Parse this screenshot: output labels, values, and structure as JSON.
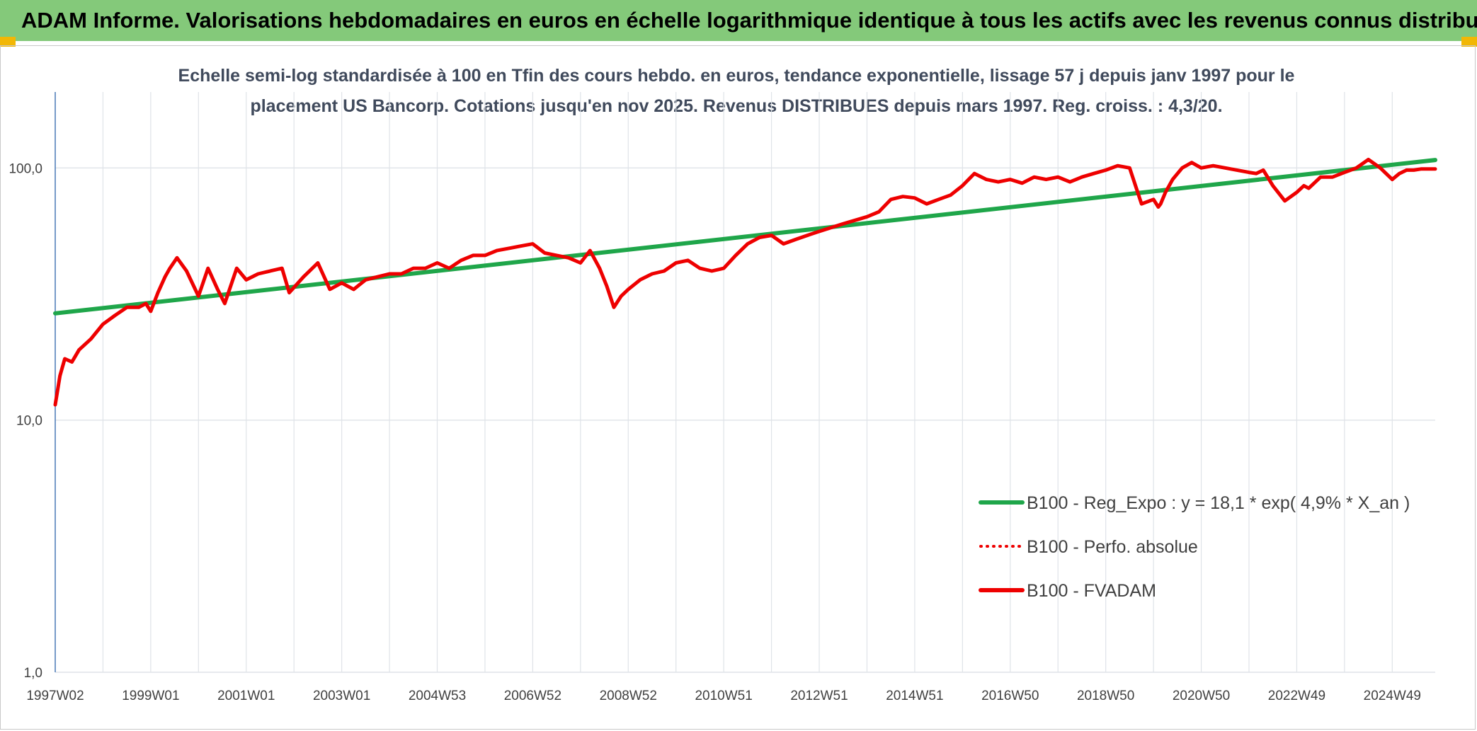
{
  "header": {
    "title": "ADAM Informe. Valorisations hebdomadaires en euros en échelle logarithmique identique à tous les actifs avec les revenus connus distribués"
  },
  "colors": {
    "header_bg": "#84c97a",
    "trend": "#1fa64a",
    "fvadam": "#ee0000",
    "perf": "#ee0000",
    "grid": "#dfe3e8",
    "axis": "#4a7ab8"
  },
  "chart_data": {
    "type": "line",
    "title": "Echelle semi-log standardisée à 100 en Tfin des cours hebdo. en euros, tendance exponentielle, lissage 57 j depuis janv 1997 pour le placement US Bancorp. Cotations jusqu'en nov 2025. Revenus DISTRIBUES depuis mars 1997. Reg. croiss. : 4,3/20.",
    "title_lines": [
      "Echelle semi-log standardisée à 100 en Tfin des cours hebdo. en euros, tendance exponentielle, lissage 57 j depuis janv 1997 pour le",
      "placement US Bancorp. Cotations jusqu'en nov 2025. Revenus DISTRIBUES depuis mars 1997. Reg. croiss. : 4,3/20."
    ],
    "y_scale": "log",
    "ylim": [
      1,
      200
    ],
    "xlim": [
      1997.0,
      2025.9
    ],
    "grid": true,
    "legend_position": "bottom-right",
    "y_ticks": [
      {
        "value": 1,
        "label": "1,0"
      },
      {
        "value": 10,
        "label": "10,0"
      },
      {
        "value": 100,
        "label": "100,0"
      }
    ],
    "x_ticks": [
      {
        "value": 1997.0,
        "label": "1997W02"
      },
      {
        "value": 1999.0,
        "label": "1999W01"
      },
      {
        "value": 2001.0,
        "label": "2001W01"
      },
      {
        "value": 2003.0,
        "label": "2003W01"
      },
      {
        "value": 2005.0,
        "label": "2004W53"
      },
      {
        "value": 2007.0,
        "label": "2006W52"
      },
      {
        "value": 2009.0,
        "label": "2008W52"
      },
      {
        "value": 2011.0,
        "label": "2010W51"
      },
      {
        "value": 2013.0,
        "label": "2012W51"
      },
      {
        "value": 2015.0,
        "label": "2014W51"
      },
      {
        "value": 2017.0,
        "label": "2016W50"
      },
      {
        "value": 2019.0,
        "label": "2018W50"
      },
      {
        "value": 2021.0,
        "label": "2020W50"
      },
      {
        "value": 2023.0,
        "label": "2022W49"
      },
      {
        "value": 2025.0,
        "label": "2024W49"
      }
    ],
    "series": [
      {
        "name": "B100 - Reg_Expo : y = 18,1 * exp( 4,9% *  X_an )",
        "style": "solid",
        "color": "#1fa64a",
        "x": [
          1997.0,
          2025.9
        ],
        "y": [
          26.5,
          107.5
        ]
      },
      {
        "name": "B100 - Perfo. absolue",
        "style": "dotted",
        "color": "#ee0000",
        "x": [],
        "y": []
      },
      {
        "name": "B100 - FVADAM",
        "style": "solid",
        "color": "#ee0000",
        "x": [
          1997.0,
          1997.1,
          1997.2,
          1997.35,
          1997.5,
          1997.75,
          1998.0,
          1998.25,
          1998.5,
          1998.75,
          1998.9,
          1999.0,
          1999.15,
          1999.3,
          1999.4,
          1999.55,
          1999.75,
          2000.0,
          2000.2,
          2000.4,
          2000.55,
          2000.8,
          2001.0,
          2001.25,
          2001.5,
          2001.75,
          2001.9,
          2002.2,
          2002.5,
          2002.75,
          2003.0,
          2003.25,
          2003.5,
          2003.75,
          2004.0,
          2004.25,
          2004.5,
          2004.75,
          2005.0,
          2005.25,
          2005.5,
          2005.75,
          2006.0,
          2006.25,
          2006.5,
          2006.75,
          2007.0,
          2007.25,
          2007.5,
          2007.75,
          2008.0,
          2008.2,
          2008.4,
          2008.55,
          2008.7,
          2008.85,
          2009.0,
          2009.25,
          2009.5,
          2009.75,
          2010.0,
          2010.25,
          2010.5,
          2010.75,
          2011.0,
          2011.25,
          2011.5,
          2011.75,
          2012.0,
          2012.25,
          2012.5,
          2012.75,
          2013.0,
          2013.25,
          2013.5,
          2013.75,
          2014.0,
          2014.25,
          2014.5,
          2014.75,
          2015.0,
          2015.25,
          2015.5,
          2015.75,
          2016.0,
          2016.25,
          2016.5,
          2016.75,
          2017.0,
          2017.25,
          2017.5,
          2017.75,
          2018.0,
          2018.25,
          2018.5,
          2018.75,
          2019.0,
          2019.25,
          2019.5,
          2019.75,
          2020.0,
          2020.1,
          2020.15,
          2020.25,
          2020.4,
          2020.6,
          2020.8,
          2021.0,
          2021.25,
          2021.5,
          2021.75,
          2022.0,
          2022.15,
          2022.3,
          2022.5,
          2022.75,
          2023.0,
          2023.15,
          2023.25,
          2023.5,
          2023.75,
          2024.0,
          2024.25,
          2024.5,
          2024.75,
          2025.0,
          2025.15,
          2025.3,
          2025.45,
          2025.6,
          2025.9
        ],
        "y": [
          11.5,
          15,
          17.5,
          17,
          19,
          21,
          24,
          26,
          28,
          28,
          29,
          27,
          32,
          37,
          40,
          44,
          39,
          31,
          40,
          33,
          29,
          40,
          36,
          38,
          39,
          40,
          32,
          37,
          42,
          33,
          35,
          33,
          36,
          37,
          38,
          38,
          40,
          40,
          42,
          40,
          43,
          45,
          45,
          47,
          48,
          49,
          50,
          46,
          45,
          44,
          42,
          47,
          40,
          34,
          28,
          31,
          33,
          36,
          38,
          39,
          42,
          43,
          40,
          39,
          40,
          45,
          50,
          53,
          54,
          50,
          52,
          54,
          56,
          58,
          60,
          62,
          64,
          67,
          75,
          77,
          76,
          72,
          75,
          78,
          85,
          95,
          90,
          88,
          90,
          87,
          92,
          90,
          92,
          88,
          92,
          95,
          98,
          102,
          100,
          72,
          75,
          70,
          72,
          80,
          90,
          100,
          105,
          100,
          102,
          100,
          98,
          96,
          95,
          98,
          85,
          74,
          80,
          85,
          83,
          92,
          92,
          96,
          100,
          108,
          100,
          90,
          95,
          98,
          98,
          99,
          99
        ]
      }
    ]
  },
  "legend": {
    "items": [
      {
        "label": "B100 - Reg_Expo : y = 18,1 * exp( 4,9% *  X_an )"
      },
      {
        "label": "B100 - Perfo. absolue"
      },
      {
        "label": "B100 - FVADAM"
      }
    ]
  }
}
